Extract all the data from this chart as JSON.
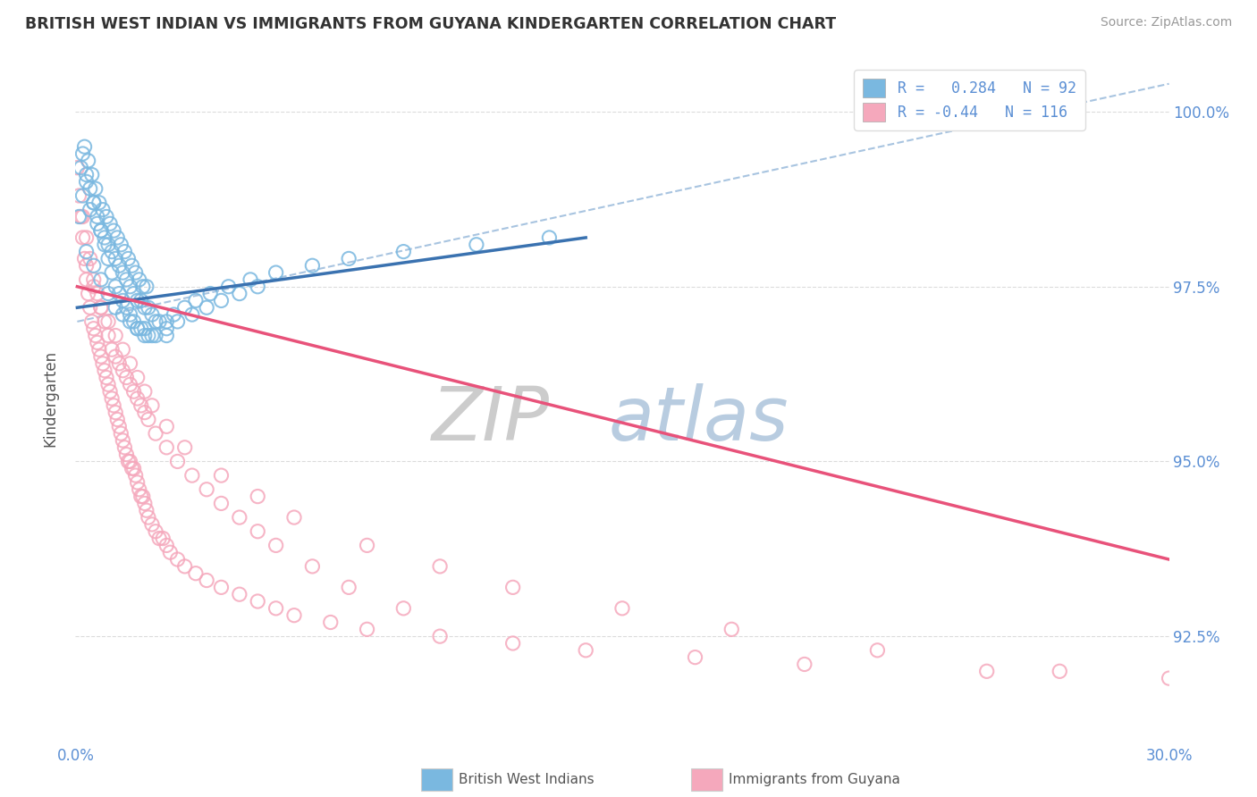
{
  "title": "BRITISH WEST INDIAN VS IMMIGRANTS FROM GUYANA KINDERGARTEN CORRELATION CHART",
  "source": "Source: ZipAtlas.com",
  "ylabel": "Kindergarten",
  "xlim": [
    0.0,
    30.0
  ],
  "ylim": [
    91.0,
    100.8
  ],
  "yticks_right": [
    92.5,
    95.0,
    97.5,
    100.0
  ],
  "ytick_labels_right": [
    "92.5%",
    "95.0%",
    "97.5%",
    "100.0%"
  ],
  "blue_R": 0.284,
  "blue_N": 92,
  "pink_R": -0.44,
  "pink_N": 116,
  "blue_color": "#7ab8e0",
  "pink_color": "#f5a8bc",
  "blue_line_color": "#3a72b0",
  "pink_line_color": "#e8527a",
  "dashed_line_color": "#a8c4e0",
  "legend_label_blue": "British West Indians",
  "legend_label_pink": "Immigrants from Guyana",
  "watermark_zip_color": "#d0d8e8",
  "watermark_atlas_color": "#b8cce0",
  "background_color": "#ffffff",
  "grid_color": "#cccccc",
  "title_color": "#333333",
  "axis_label_color": "#5b8fd4",
  "blue_scatter_x": [
    0.1,
    0.15,
    0.2,
    0.25,
    0.3,
    0.35,
    0.4,
    0.45,
    0.5,
    0.55,
    0.6,
    0.65,
    0.7,
    0.75,
    0.8,
    0.85,
    0.9,
    0.95,
    1.0,
    1.05,
    1.1,
    1.15,
    1.2,
    1.25,
    1.3,
    1.35,
    1.4,
    1.45,
    1.5,
    1.55,
    1.6,
    1.65,
    1.7,
    1.75,
    1.8,
    1.85,
    1.9,
    1.95,
    2.0,
    2.1,
    2.2,
    2.3,
    2.5,
    2.7,
    3.0,
    3.3,
    3.7,
    4.2,
    4.8,
    5.5,
    6.5,
    7.5,
    9.0,
    11.0,
    13.0,
    0.2,
    0.3,
    0.4,
    0.5,
    0.6,
    0.7,
    0.8,
    0.9,
    1.0,
    1.1,
    1.2,
    1.3,
    1.4,
    1.5,
    1.6,
    1.7,
    1.8,
    1.9,
    2.0,
    2.2,
    2.5,
    2.8,
    3.2,
    3.6,
    4.0,
    4.5,
    5.0,
    0.3,
    0.5,
    0.7,
    0.9,
    1.1,
    1.3,
    1.5,
    1.7,
    1.9,
    2.1,
    2.5
  ],
  "blue_scatter_y": [
    98.5,
    99.2,
    98.8,
    99.5,
    99.0,
    99.3,
    98.6,
    99.1,
    98.7,
    98.9,
    98.4,
    98.7,
    98.3,
    98.6,
    98.2,
    98.5,
    98.1,
    98.4,
    98.0,
    98.3,
    97.9,
    98.2,
    97.8,
    98.1,
    97.7,
    98.0,
    97.6,
    97.9,
    97.5,
    97.8,
    97.4,
    97.7,
    97.3,
    97.6,
    97.3,
    97.5,
    97.2,
    97.5,
    97.2,
    97.1,
    97.0,
    97.0,
    97.0,
    97.1,
    97.2,
    97.3,
    97.4,
    97.5,
    97.6,
    97.7,
    97.8,
    97.9,
    98.0,
    98.1,
    98.2,
    99.4,
    99.1,
    98.9,
    98.7,
    98.5,
    98.3,
    98.1,
    97.9,
    97.7,
    97.5,
    97.4,
    97.3,
    97.2,
    97.1,
    97.0,
    96.9,
    96.9,
    96.8,
    96.8,
    96.8,
    96.9,
    97.0,
    97.1,
    97.2,
    97.3,
    97.4,
    97.5,
    98.0,
    97.8,
    97.6,
    97.4,
    97.2,
    97.1,
    97.0,
    96.9,
    96.9,
    96.8,
    96.8
  ],
  "pink_scatter_x": [
    0.05,
    0.1,
    0.15,
    0.2,
    0.25,
    0.3,
    0.35,
    0.4,
    0.45,
    0.5,
    0.55,
    0.6,
    0.65,
    0.7,
    0.75,
    0.8,
    0.85,
    0.9,
    0.95,
    1.0,
    1.05,
    1.1,
    1.15,
    1.2,
    1.25,
    1.3,
    1.35,
    1.4,
    1.45,
    1.5,
    1.55,
    1.6,
    1.65,
    1.7,
    1.75,
    1.8,
    1.85,
    1.9,
    1.95,
    2.0,
    2.1,
    2.2,
    2.3,
    2.4,
    2.5,
    2.6,
    2.8,
    3.0,
    3.3,
    3.6,
    4.0,
    4.5,
    5.0,
    5.5,
    6.0,
    7.0,
    8.0,
    10.0,
    12.0,
    14.0,
    17.0,
    20.0,
    25.0,
    30.0,
    0.2,
    0.3,
    0.4,
    0.5,
    0.6,
    0.7,
    0.8,
    0.9,
    1.0,
    1.1,
    1.2,
    1.3,
    1.4,
    1.5,
    1.6,
    1.7,
    1.8,
    1.9,
    2.0,
    2.2,
    2.5,
    2.8,
    3.2,
    3.6,
    4.0,
    4.5,
    5.0,
    5.5,
    6.5,
    7.5,
    9.0,
    0.3,
    0.5,
    0.7,
    0.9,
    1.1,
    1.3,
    1.5,
    1.7,
    1.9,
    2.1,
    2.5,
    3.0,
    4.0,
    5.0,
    6.0,
    8.0,
    10.0,
    12.0,
    15.0,
    18.0,
    22.0,
    27.0
  ],
  "pink_scatter_y": [
    99.2,
    98.8,
    98.5,
    98.2,
    97.9,
    97.6,
    97.4,
    97.2,
    97.0,
    96.9,
    96.8,
    96.7,
    96.6,
    96.5,
    96.4,
    96.3,
    96.2,
    96.1,
    96.0,
    95.9,
    95.8,
    95.7,
    95.6,
    95.5,
    95.4,
    95.3,
    95.2,
    95.1,
    95.0,
    95.0,
    94.9,
    94.9,
    94.8,
    94.7,
    94.6,
    94.5,
    94.5,
    94.4,
    94.3,
    94.2,
    94.1,
    94.0,
    93.9,
    93.9,
    93.8,
    93.7,
    93.6,
    93.5,
    93.4,
    93.3,
    93.2,
    93.1,
    93.0,
    92.9,
    92.8,
    92.7,
    92.6,
    92.5,
    92.4,
    92.3,
    92.2,
    92.1,
    92.0,
    91.9,
    98.5,
    98.2,
    97.9,
    97.6,
    97.4,
    97.2,
    97.0,
    96.8,
    96.6,
    96.5,
    96.4,
    96.3,
    96.2,
    96.1,
    96.0,
    95.9,
    95.8,
    95.7,
    95.6,
    95.4,
    95.2,
    95.0,
    94.8,
    94.6,
    94.4,
    94.2,
    94.0,
    93.8,
    93.5,
    93.2,
    92.9,
    97.8,
    97.5,
    97.2,
    97.0,
    96.8,
    96.6,
    96.4,
    96.2,
    96.0,
    95.8,
    95.5,
    95.2,
    94.8,
    94.5,
    94.2,
    93.8,
    93.5,
    93.2,
    92.9,
    92.6,
    92.3,
    92.0
  ],
  "blue_line_x0": 0.05,
  "blue_line_x1": 14.0,
  "blue_line_y0": 97.2,
  "blue_line_y1": 98.2,
  "pink_line_x0": 0.05,
  "pink_line_x1": 30.0,
  "pink_line_y0": 97.5,
  "pink_line_y1": 93.6,
  "dash_line_x0": 0.05,
  "dash_line_x1": 30.0,
  "dash_line_y0": 97.0,
  "dash_line_y1": 100.4
}
